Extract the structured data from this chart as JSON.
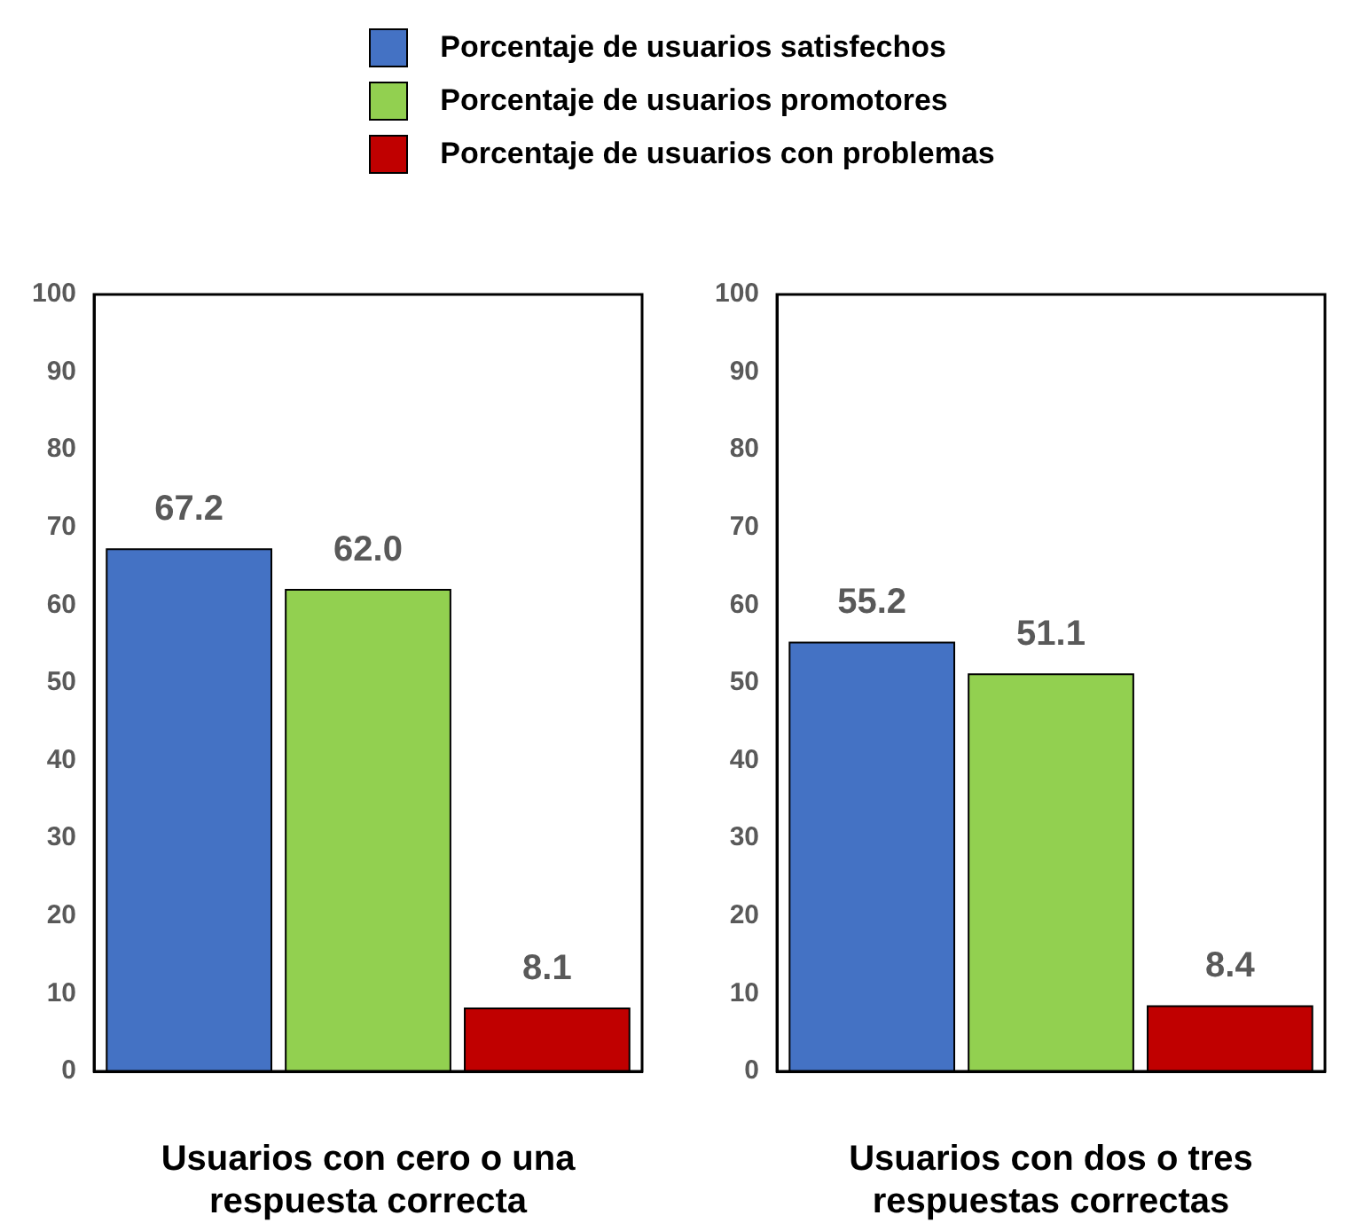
{
  "chart_data": [
    {
      "type": "bar",
      "categories": [
        null
      ],
      "xlabel": "Usuarios con cero o una respuesta correcta",
      "series": [
        {
          "name": "Porcentaje de usuarios satisfechos",
          "color": "#4472c4",
          "values": [
            67.2
          ],
          "value_labels": [
            "67.2"
          ]
        },
        {
          "name": "Porcentaje de usuarios promotores",
          "color": "#92d050",
          "values": [
            62.0
          ],
          "value_labels": [
            "62.0"
          ]
        },
        {
          "name": "Porcentaje de usuarios con problemas",
          "color": "#c00000",
          "values": [
            8.1
          ],
          "value_labels": [
            "8.1"
          ]
        }
      ],
      "ylim": [
        0,
        100
      ],
      "yticks": [
        0,
        10,
        20,
        30,
        40,
        50,
        60,
        70,
        80,
        90,
        100
      ],
      "grid": false,
      "legend": "top"
    },
    {
      "type": "bar",
      "categories": [
        null
      ],
      "xlabel": "Usuarios con dos o tres respuestas correctas",
      "series": [
        {
          "color": "#4472c4",
          "values": [
            55.2
          ],
          "value_labels": [
            "55.2"
          ]
        },
        {
          "color": "#92d050",
          "values": [
            51.1
          ],
          "value_labels": [
            "51.1"
          ]
        },
        {
          "color": "#c00000",
          "values": [
            8.4
          ],
          "value_labels": [
            "8.4"
          ]
        }
      ],
      "ylim": [
        0,
        100
      ],
      "yticks": [
        0,
        10,
        20,
        30,
        40,
        50,
        60,
        70,
        80,
        90,
        100
      ],
      "grid": false
    }
  ]
}
